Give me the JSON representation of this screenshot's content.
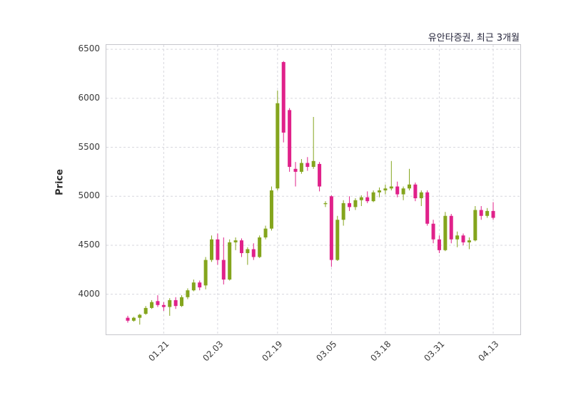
{
  "header": {
    "title": "유안타증권, 최근 3개월"
  },
  "chart_data": {
    "type": "candlestick",
    "title": "유안타증권, 최근 3개월",
    "ylabel": "Price",
    "y_ticks": [
      4000,
      4500,
      5000,
      5500,
      6000,
      6500
    ],
    "y_range": [
      3590,
      6545
    ],
    "x_tick_labels": [
      "01.21",
      "02.03",
      "02.19",
      "03.05",
      "03.18",
      "03.31",
      "04.13"
    ],
    "x_tick_indices": [
      6,
      15,
      25,
      34,
      43,
      52,
      61
    ],
    "grid": "dashed",
    "legend": "none",
    "colors": {
      "up": "#84a51d",
      "down": "#e0218a",
      "grid": "#d7d7de",
      "axis_text": "#3a3a3a",
      "spine": "#c6c6cc"
    },
    "candles_format": [
      "open",
      "high",
      "low",
      "close"
    ],
    "candles": [
      [
        3760,
        3780,
        3710,
        3730
      ],
      [
        3730,
        3770,
        3720,
        3760
      ],
      [
        3760,
        3800,
        3690,
        3790
      ],
      [
        3800,
        3880,
        3790,
        3860
      ],
      [
        3860,
        3940,
        3850,
        3920
      ],
      [
        3930,
        3990,
        3870,
        3890
      ],
      [
        3890,
        3920,
        3830,
        3870
      ],
      [
        3870,
        3960,
        3780,
        3940
      ],
      [
        3940,
        3970,
        3850,
        3880
      ],
      [
        3880,
        3990,
        3870,
        3970
      ],
      [
        3970,
        4060,
        3950,
        4040
      ],
      [
        4040,
        4150,
        4030,
        4120
      ],
      [
        4120,
        4140,
        4040,
        4070
      ],
      [
        4090,
        4380,
        4050,
        4350
      ],
      [
        4350,
        4600,
        4330,
        4560
      ],
      [
        4560,
        4620,
        4300,
        4350
      ],
      [
        4350,
        4580,
        4100,
        4150
      ],
      [
        4150,
        4560,
        4140,
        4530
      ],
      [
        4530,
        4580,
        4450,
        4550
      ],
      [
        4550,
        4570,
        4380,
        4420
      ],
      [
        4420,
        4480,
        4300,
        4460
      ],
      [
        4460,
        4520,
        4350,
        4380
      ],
      [
        4380,
        4600,
        4370,
        4580
      ],
      [
        4580,
        4700,
        4560,
        4670
      ],
      [
        4670,
        5100,
        4650,
        5060
      ],
      [
        5080,
        6080,
        5060,
        5950
      ],
      [
        6370,
        6380,
        5550,
        5650
      ],
      [
        5880,
        5900,
        5250,
        5300
      ],
      [
        5280,
        5350,
        5100,
        5250
      ],
      [
        5250,
        5380,
        5230,
        5340
      ],
      [
        5340,
        5400,
        5260,
        5300
      ],
      [
        5300,
        5810,
        5280,
        5360
      ],
      [
        5330,
        5350,
        5050,
        5100
      ],
      [
        4920,
        4950,
        4890,
        4930
      ],
      [
        5000,
        5010,
        4280,
        4350
      ],
      [
        4350,
        4800,
        4340,
        4760
      ],
      [
        4760,
        4960,
        4700,
        4930
      ],
      [
        4930,
        5000,
        4850,
        4890
      ],
      [
        4890,
        4980,
        4860,
        4960
      ],
      [
        4960,
        5010,
        4900,
        4990
      ],
      [
        4990,
        5050,
        4930,
        4950
      ],
      [
        4950,
        5060,
        4940,
        5040
      ],
      [
        5040,
        5090,
        4990,
        5060
      ],
      [
        5060,
        5120,
        5020,
        5080
      ],
      [
        5080,
        5360,
        5060,
        5100
      ],
      [
        5100,
        5150,
        4990,
        5020
      ],
      [
        5020,
        5100,
        4960,
        5080
      ],
      [
        5080,
        5280,
        5060,
        5120
      ],
      [
        5120,
        5140,
        4950,
        4980
      ],
      [
        4980,
        5060,
        4900,
        5040
      ],
      [
        5040,
        5060,
        4700,
        4720
      ],
      [
        4720,
        4760,
        4520,
        4560
      ],
      [
        4560,
        4600,
        4420,
        4450
      ],
      [
        4450,
        4840,
        4440,
        4800
      ],
      [
        4800,
        4820,
        4520,
        4560
      ],
      [
        4560,
        4640,
        4480,
        4600
      ],
      [
        4600,
        4620,
        4500,
        4530
      ],
      [
        4530,
        4580,
        4460,
        4550
      ],
      [
        4550,
        4900,
        4540,
        4860
      ],
      [
        4860,
        4900,
        4760,
        4800
      ],
      [
        4800,
        4880,
        4780,
        4850
      ],
      [
        4850,
        4940,
        4760,
        4780
      ]
    ]
  }
}
